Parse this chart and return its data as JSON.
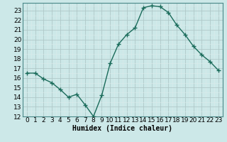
{
  "x": [
    0,
    1,
    2,
    3,
    4,
    5,
    6,
    7,
    8,
    9,
    10,
    11,
    12,
    13,
    14,
    15,
    16,
    17,
    18,
    19,
    20,
    21,
    22,
    23
  ],
  "y": [
    16.5,
    16.5,
    15.9,
    15.5,
    14.8,
    14.0,
    14.3,
    13.2,
    12.0,
    14.2,
    17.5,
    19.5,
    20.5,
    21.2,
    23.3,
    23.5,
    23.4,
    22.8,
    21.5,
    20.5,
    19.3,
    18.4,
    17.7,
    16.8
  ],
  "line_color": "#1a6b5a",
  "marker": "+",
  "marker_size": 4,
  "bg_color": "#cce8e8",
  "grid_major_color": "#b0c8c8",
  "grid_minor_color": "#dceaea",
  "xlabel": "Humidex (Indice chaleur)",
  "ylim": [
    12,
    23.8
  ],
  "xlim": [
    -0.5,
    23.5
  ],
  "yticks": [
    12,
    13,
    14,
    15,
    16,
    17,
    18,
    19,
    20,
    21,
    22,
    23
  ],
  "xticks": [
    0,
    1,
    2,
    3,
    4,
    5,
    6,
    7,
    8,
    9,
    10,
    11,
    12,
    13,
    14,
    15,
    16,
    17,
    18,
    19,
    20,
    21,
    22,
    23
  ],
  "xlabel_fontsize": 7,
  "tick_fontsize": 6.5,
  "line_width": 1.0,
  "marker_color": "#1a6b5a"
}
